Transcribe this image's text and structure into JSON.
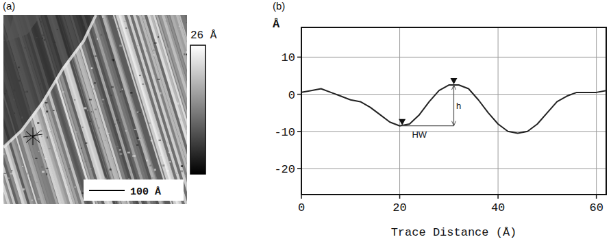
{
  "chart_data": [
    {
      "type": "image",
      "title": "(a)",
      "colorbar_label": "26 Å",
      "scale_bar_label": "100 Å"
    },
    {
      "type": "line",
      "title": "(b)",
      "y_label": "Å",
      "x_label": "Trace Distance (Å)",
      "x": [
        0,
        2,
        4,
        6,
        8,
        10,
        12,
        14,
        16,
        18,
        20,
        22,
        24,
        26,
        28,
        30,
        32,
        34,
        36,
        38,
        40,
        42,
        44,
        46,
        48,
        50,
        52,
        54,
        56,
        58,
        60,
        62
      ],
      "values": [
        0.5,
        1,
        1.5,
        0.5,
        -0.5,
        -1.5,
        -2,
        -3.5,
        -5.5,
        -7.5,
        -8.5,
        -8,
        -5.5,
        -2,
        1,
        2.5,
        2.5,
        1.5,
        -1.5,
        -5,
        -8,
        -10,
        -10.5,
        -10,
        -8,
        -5,
        -2,
        -0.5,
        0.5,
        0.5,
        0.5,
        1
      ],
      "color": "#222222",
      "xlim": [
        0,
        62
      ],
      "xticks": [
        0,
        20,
        40,
        60
      ],
      "ylim": [
        -27,
        18
      ],
      "yticks": [
        -20,
        -10,
        0,
        10
      ],
      "grid": true,
      "markers": {
        "x": [
          20.5,
          31
        ],
        "y": [
          -8.5,
          2.5
        ]
      },
      "annotations": [
        {
          "text": "h",
          "x": 32,
          "y": -3
        },
        {
          "text": "HW",
          "x": 24,
          "y": -10.8
        }
      ]
    }
  ]
}
